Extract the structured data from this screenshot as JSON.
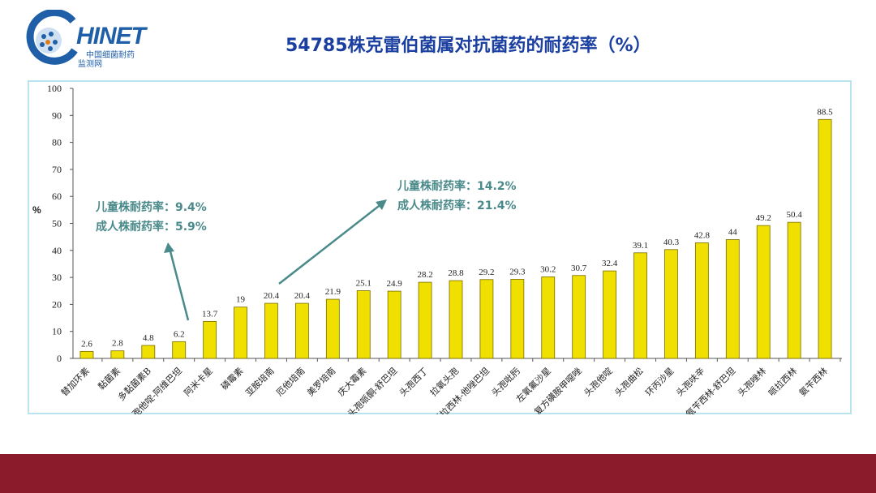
{
  "logo": {
    "text": "HINET",
    "sub1": "中国细菌耐药",
    "sub2": "监测网",
    "icon": "chinet-globe-logo"
  },
  "title": "54785株克雷伯菌属对抗菌药的耐药率（%）",
  "annotations": [
    {
      "line1": "儿童株耐药率：9.4%",
      "line2": "成人株耐药率：5.9%"
    },
    {
      "line1": "儿童株耐药率：14.2%",
      "line2": "成人株耐药率：21.4%"
    }
  ],
  "colors": {
    "bar": "#f0e000",
    "bar_edge": "#7a6a00",
    "frame": "#b9e3ee",
    "axis": "#555555",
    "annot": "#4a8a8a",
    "footer": "#8b1a2b",
    "title": "#1a3fa0"
  },
  "chart_data": {
    "type": "bar",
    "ylabel": "%",
    "ylim": [
      0,
      100
    ],
    "yticks": [
      0,
      10,
      20,
      30,
      40,
      50,
      60,
      70,
      80,
      90,
      100
    ],
    "grid": false,
    "categories": [
      "替加环素",
      "黏菌素",
      "多黏菌素B",
      "头孢他啶-阿维巴坦",
      "阿米卡星",
      "磷霉素",
      "亚胺培南",
      "厄他培南",
      "美罗培南",
      "庆大霉素",
      "头孢哌酮-舒巴坦",
      "头孢西丁",
      "拉氧头孢",
      "哌拉西林-他唑巴坦",
      "头孢吡肟",
      "左氧氟沙星",
      "复方磺胺甲噁唑",
      "头孢他啶",
      "头孢曲松",
      "环丙沙星",
      "头孢呋辛",
      "氨苄西林-舒巴坦",
      "头孢唑林",
      "哌拉西林",
      "氨苄西林"
    ],
    "values": [
      2.6,
      2.8,
      4.8,
      6.2,
      13.7,
      19,
      20.4,
      20.4,
      21.9,
      25.1,
      24.9,
      28.2,
      28.8,
      29.2,
      29.3,
      30.2,
      30.7,
      32.4,
      39.1,
      40.3,
      42.8,
      44,
      49.2,
      50.4,
      88.5
    ],
    "value_labels": [
      "2.6",
      "2.8",
      "4.8",
      "6.2",
      "13.7",
      "19",
      "20.4",
      "20.4",
      "21.9",
      "25.1",
      "24.9",
      "28.2",
      "28.8",
      "29.2",
      "29.3",
      "30.2",
      "30.7",
      "32.4",
      "39.1",
      "40.3",
      "42.8",
      "44",
      "49.2",
      "50.4",
      "88.5"
    ]
  }
}
